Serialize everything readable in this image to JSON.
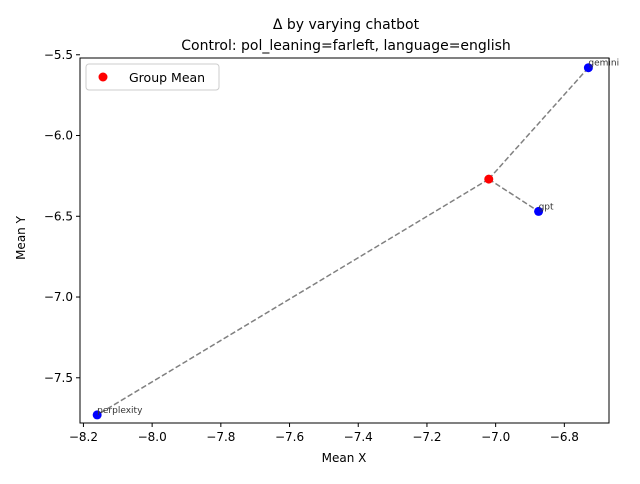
{
  "chart_data": {
    "type": "scatter",
    "title": "Δ by varying chatbot",
    "subtitle": "Control: pol_leaning=farleft, language=english",
    "xlabel": "Mean X",
    "ylabel": "Mean Y",
    "xlim": [
      -8.21,
      -6.67
    ],
    "ylim": [
      -7.78,
      -5.52
    ],
    "xticks": [
      -8.2,
      -8.0,
      -7.8,
      -7.6,
      -7.4,
      -7.2,
      -7.0,
      -6.8
    ],
    "yticks": [
      -7.5,
      -7.0,
      -6.5,
      -6.0,
      -5.5
    ],
    "grid": false,
    "legend": {
      "position": "top-left",
      "entries": [
        "Group Mean"
      ]
    },
    "group_mean": {
      "name": "Group Mean",
      "x": -7.02,
      "y": -6.27,
      "color": "#ff0000"
    },
    "points": [
      {
        "label": "gemini",
        "x": -6.73,
        "y": -5.58
      },
      {
        "label": "gpt",
        "x": -6.875,
        "y": -6.47
      },
      {
        "label": "perplexity",
        "x": -8.16,
        "y": -7.73
      }
    ],
    "point_color": "#0000ff",
    "line_color": "#808080"
  }
}
